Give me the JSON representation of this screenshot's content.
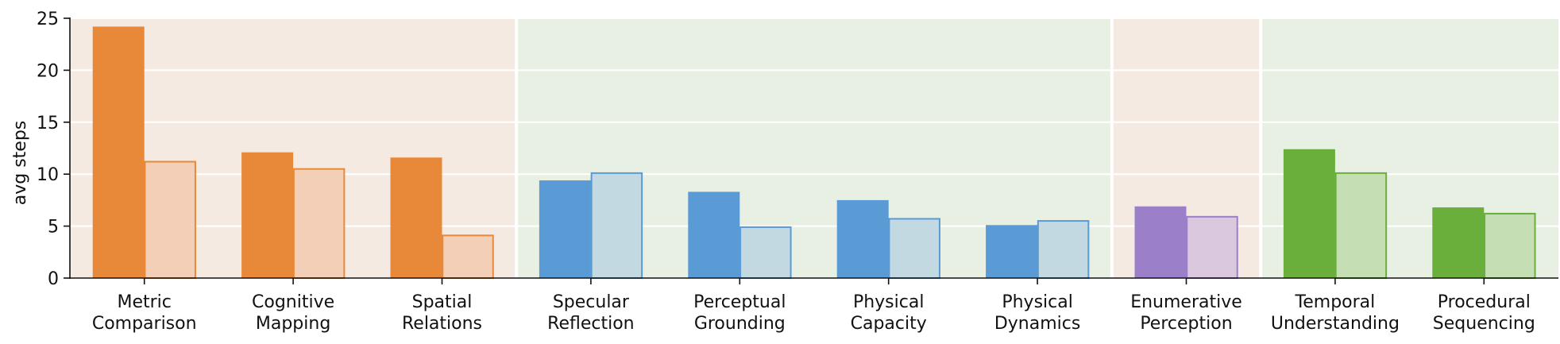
{
  "chart_data": {
    "type": "bar",
    "ylabel": "avg steps",
    "ylim": [
      0,
      25
    ],
    "yticks": [
      0,
      5,
      10,
      15,
      20,
      25
    ],
    "grid": "horizontal",
    "categories": [
      [
        "Metric",
        "Comparison"
      ],
      [
        "Cognitive",
        "Mapping"
      ],
      [
        "Spatial",
        "Relations"
      ],
      [
        "Specular",
        "Reflection"
      ],
      [
        "Perceptual",
        "Grounding"
      ],
      [
        "Physical",
        "Capacity"
      ],
      [
        "Physical",
        "Dynamics"
      ],
      [
        "Enumerative",
        "Perception"
      ],
      [
        "Temporal",
        "Understanding"
      ],
      [
        "Procedural",
        "Sequencing"
      ]
    ],
    "groups": [
      {
        "start": 0,
        "end": 2,
        "background": "#f5eae2"
      },
      {
        "start": 3,
        "end": 6,
        "background": "#e8efe3"
      },
      {
        "start": 7,
        "end": 7,
        "background": "#f5eae2"
      },
      {
        "start": 8,
        "end": 9,
        "background": "#e8efe3"
      }
    ],
    "bar_colors": [
      "#e8893a",
      "#e8893a",
      "#e8893a",
      "#5b9bd5",
      "#5b9bd5",
      "#5b9bd5",
      "#5b9bd5",
      "#9b80c9",
      "#6aaf3b",
      "#6aaf3b"
    ],
    "light_fill_colors": [
      "#f2cfb6",
      "#f2cfb6",
      "#f2cfb6",
      "#c2d9e1",
      "#c2d9e1",
      "#c2d9e1",
      "#c2d9e1",
      "#dac9de",
      "#c6deb4",
      "#c6deb4"
    ],
    "series": [
      {
        "style": "solid",
        "values": [
          24.2,
          12.1,
          11.6,
          9.4,
          8.3,
          7.5,
          5.1,
          6.9,
          12.4,
          6.8
        ]
      },
      {
        "style": "light",
        "values": [
          11.2,
          10.5,
          4.1,
          10.1,
          4.9,
          5.7,
          5.5,
          5.9,
          10.1,
          6.2
        ]
      }
    ]
  }
}
